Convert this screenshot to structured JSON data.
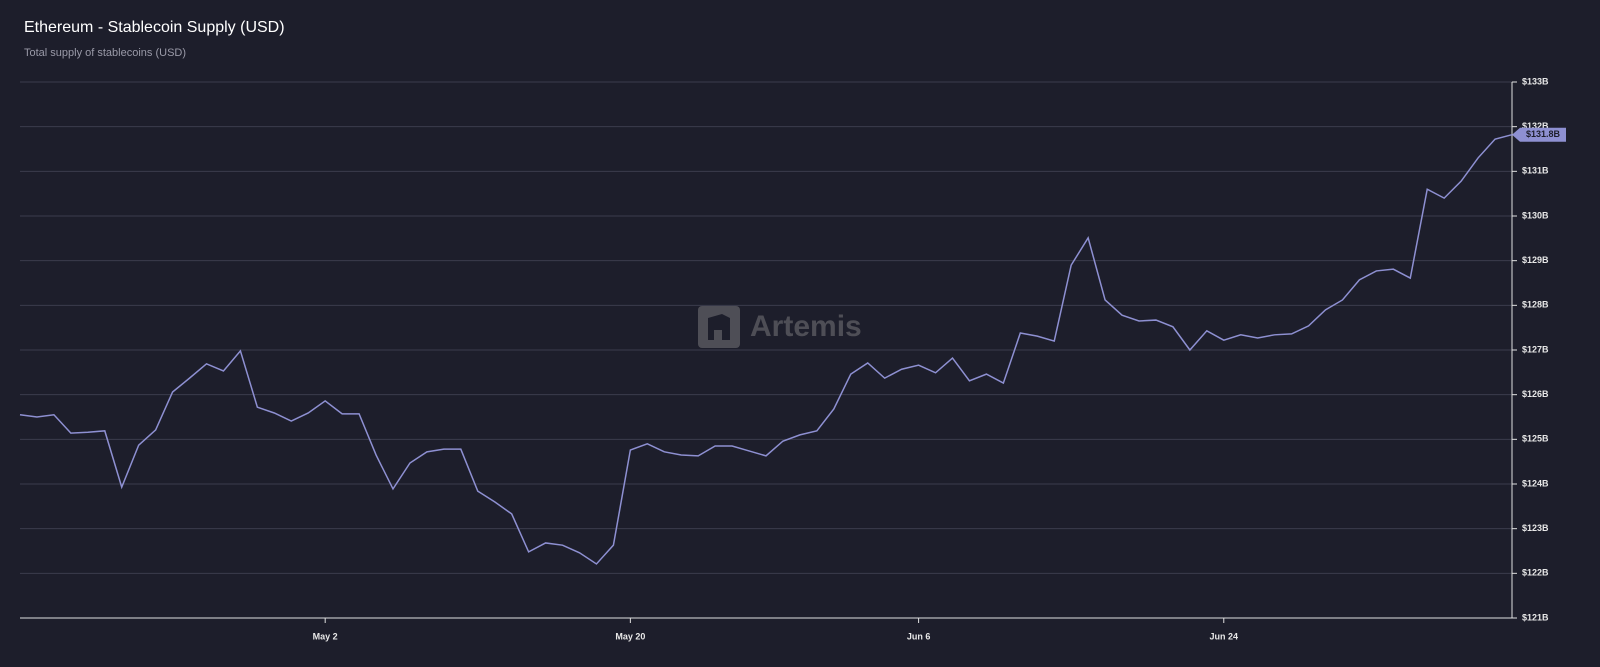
{
  "chart_data": {
    "type": "line",
    "title": "Ethereum - Stablecoin Supply (USD)",
    "subtitle": "Total supply of stablecoins (USD)",
    "watermark": "Artemis",
    "categories": [
      null,
      null,
      null,
      null,
      null,
      null,
      null,
      null,
      null,
      null,
      null,
      null,
      null,
      null,
      null,
      null,
      null,
      null,
      "May 2",
      null,
      null,
      null,
      null,
      null,
      null,
      null,
      null,
      null,
      null,
      null,
      null,
      null,
      null,
      null,
      null,
      null,
      "May 20",
      null,
      null,
      null,
      null,
      null,
      null,
      null,
      null,
      null,
      null,
      null,
      null,
      null,
      null,
      null,
      null,
      "Jun 6",
      null,
      null,
      null,
      null,
      null,
      null,
      null,
      null,
      null,
      null,
      null,
      null,
      null,
      null,
      null,
      null,
      null,
      "Jun 24",
      null,
      null,
      null,
      null,
      null,
      null,
      null,
      null,
      null,
      null,
      null,
      null,
      null,
      null,
      null,
      null,
      null
    ],
    "series": [
      {
        "name": "Stablecoin Supply",
        "color": "#8e90d2",
        "values": [
          125.55,
          125.5,
          125.55,
          125.14,
          125.16,
          125.19,
          123.93,
          124.87,
          125.21,
          126.06,
          126.37,
          126.69,
          126.53,
          126.98,
          125.72,
          125.59,
          125.41,
          125.59,
          125.86,
          125.57,
          125.57,
          124.65,
          123.89,
          124.47,
          124.72,
          124.78,
          124.78,
          123.84,
          123.6,
          123.33,
          122.48,
          122.68,
          122.63,
          122.46,
          122.21,
          122.63,
          124.76,
          124.9,
          124.72,
          124.65,
          124.63,
          124.85,
          124.85,
          124.74,
          124.63,
          124.96,
          125.1,
          125.19,
          125.68,
          126.46,
          126.71,
          126.37,
          126.57,
          126.66,
          126.49,
          126.82,
          126.31,
          126.46,
          126.26,
          127.38,
          127.31,
          127.2,
          128.9,
          129.51,
          128.12,
          127.78,
          127.65,
          127.67,
          127.52,
          127.0,
          127.43,
          127.22,
          127.34,
          127.27,
          127.34,
          127.36,
          127.54,
          127.9,
          128.12,
          128.57,
          128.77,
          128.81,
          128.61,
          130.6,
          130.4,
          130.78,
          131.3,
          131.72,
          131.82
        ],
        "value_labels": [
          null,
          null,
          null,
          null,
          null,
          null,
          null,
          null,
          null,
          null,
          null,
          null,
          null,
          null,
          null,
          null,
          null,
          null,
          null,
          null,
          null,
          null,
          null,
          null,
          null,
          null,
          null,
          null,
          null,
          null,
          null,
          null,
          null,
          null,
          null,
          null,
          null,
          null,
          null,
          null,
          null,
          null,
          null,
          null,
          null,
          null,
          null,
          null,
          null,
          null,
          null,
          null,
          null,
          null,
          null,
          null,
          null,
          null,
          null,
          null,
          null,
          null,
          null,
          null,
          null,
          null,
          null,
          null,
          null,
          null,
          null,
          null,
          null,
          null,
          null,
          null,
          null,
          null,
          null,
          null,
          null,
          null,
          null,
          null,
          null,
          null,
          null,
          null,
          "$131.8B"
        ]
      }
    ],
    "ylim": [
      121,
      133
    ],
    "yticks": [
      {
        "value": 121,
        "label": "$121B"
      },
      {
        "value": 122,
        "label": "$122B"
      },
      {
        "value": 123,
        "label": "$123B"
      },
      {
        "value": 124,
        "label": "$124B"
      },
      {
        "value": 125,
        "label": "$125B"
      },
      {
        "value": 126,
        "label": "$126B"
      },
      {
        "value": 127,
        "label": "$127B"
      },
      {
        "value": 128,
        "label": "$128B"
      },
      {
        "value": 129,
        "label": "$129B"
      },
      {
        "value": 130,
        "label": "$130B"
      },
      {
        "value": 131,
        "label": "$131B"
      },
      {
        "value": 132,
        "label": "$132B"
      },
      {
        "value": 133,
        "label": "$133B"
      }
    ],
    "grid": true
  }
}
